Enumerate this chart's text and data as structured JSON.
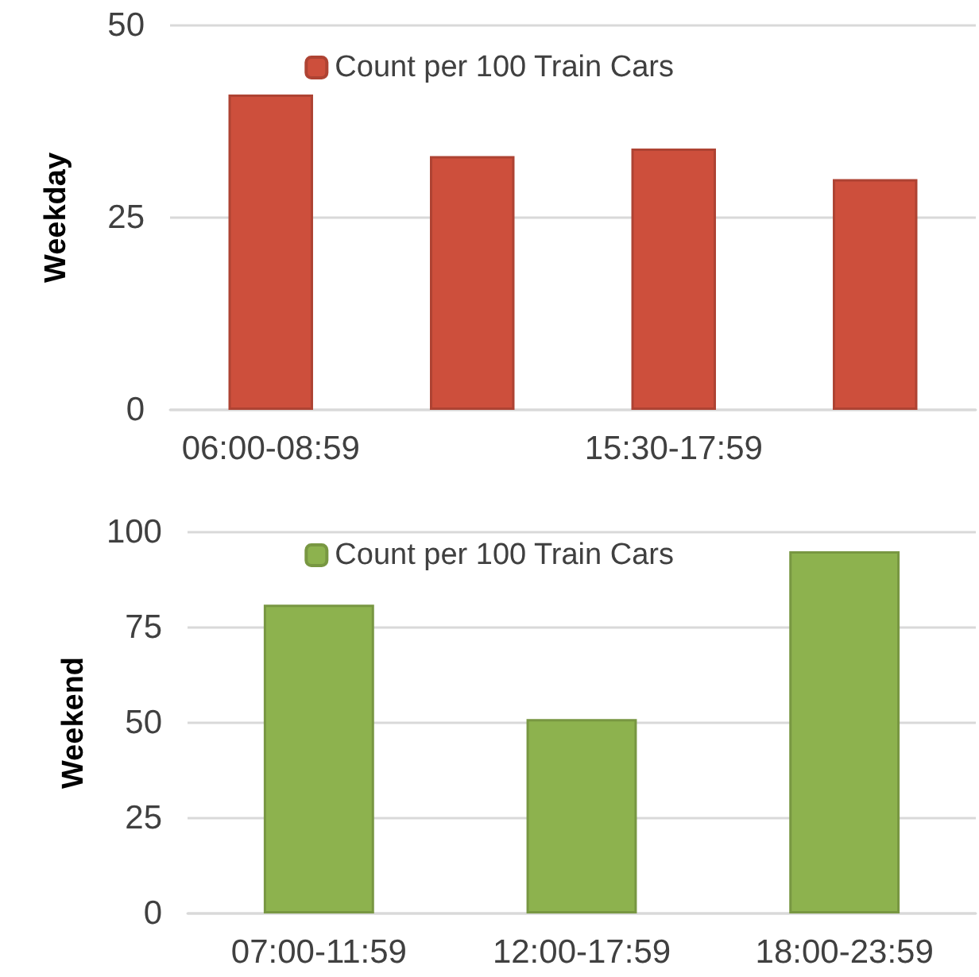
{
  "chart_data": [
    {
      "type": "bar",
      "ylabel": "Weekday",
      "categories": [
        "06:00-08:59",
        null,
        "15:30-17:59",
        null
      ],
      "series": [
        {
          "name": "Count per 100 Train Cars",
          "color": "#cd4f3c",
          "values": [
            41,
            33,
            34,
            30
          ]
        }
      ],
      "ylim": [
        0,
        50
      ],
      "yticks": [
        0,
        25,
        50
      ],
      "grid": "y",
      "legend": "top"
    },
    {
      "type": "bar",
      "ylabel": "Weekend",
      "categories": [
        "07:00-11:59",
        "12:00-17:59",
        "18:00-23:59"
      ],
      "series": [
        {
          "name": "Count per 100 Train Cars",
          "color": "#8db24e",
          "values": [
            81,
            51,
            95
          ]
        }
      ],
      "ylim": [
        0,
        100
      ],
      "yticks": [
        0,
        25,
        50,
        75,
        100
      ],
      "grid": "y",
      "legend": "top"
    }
  ]
}
